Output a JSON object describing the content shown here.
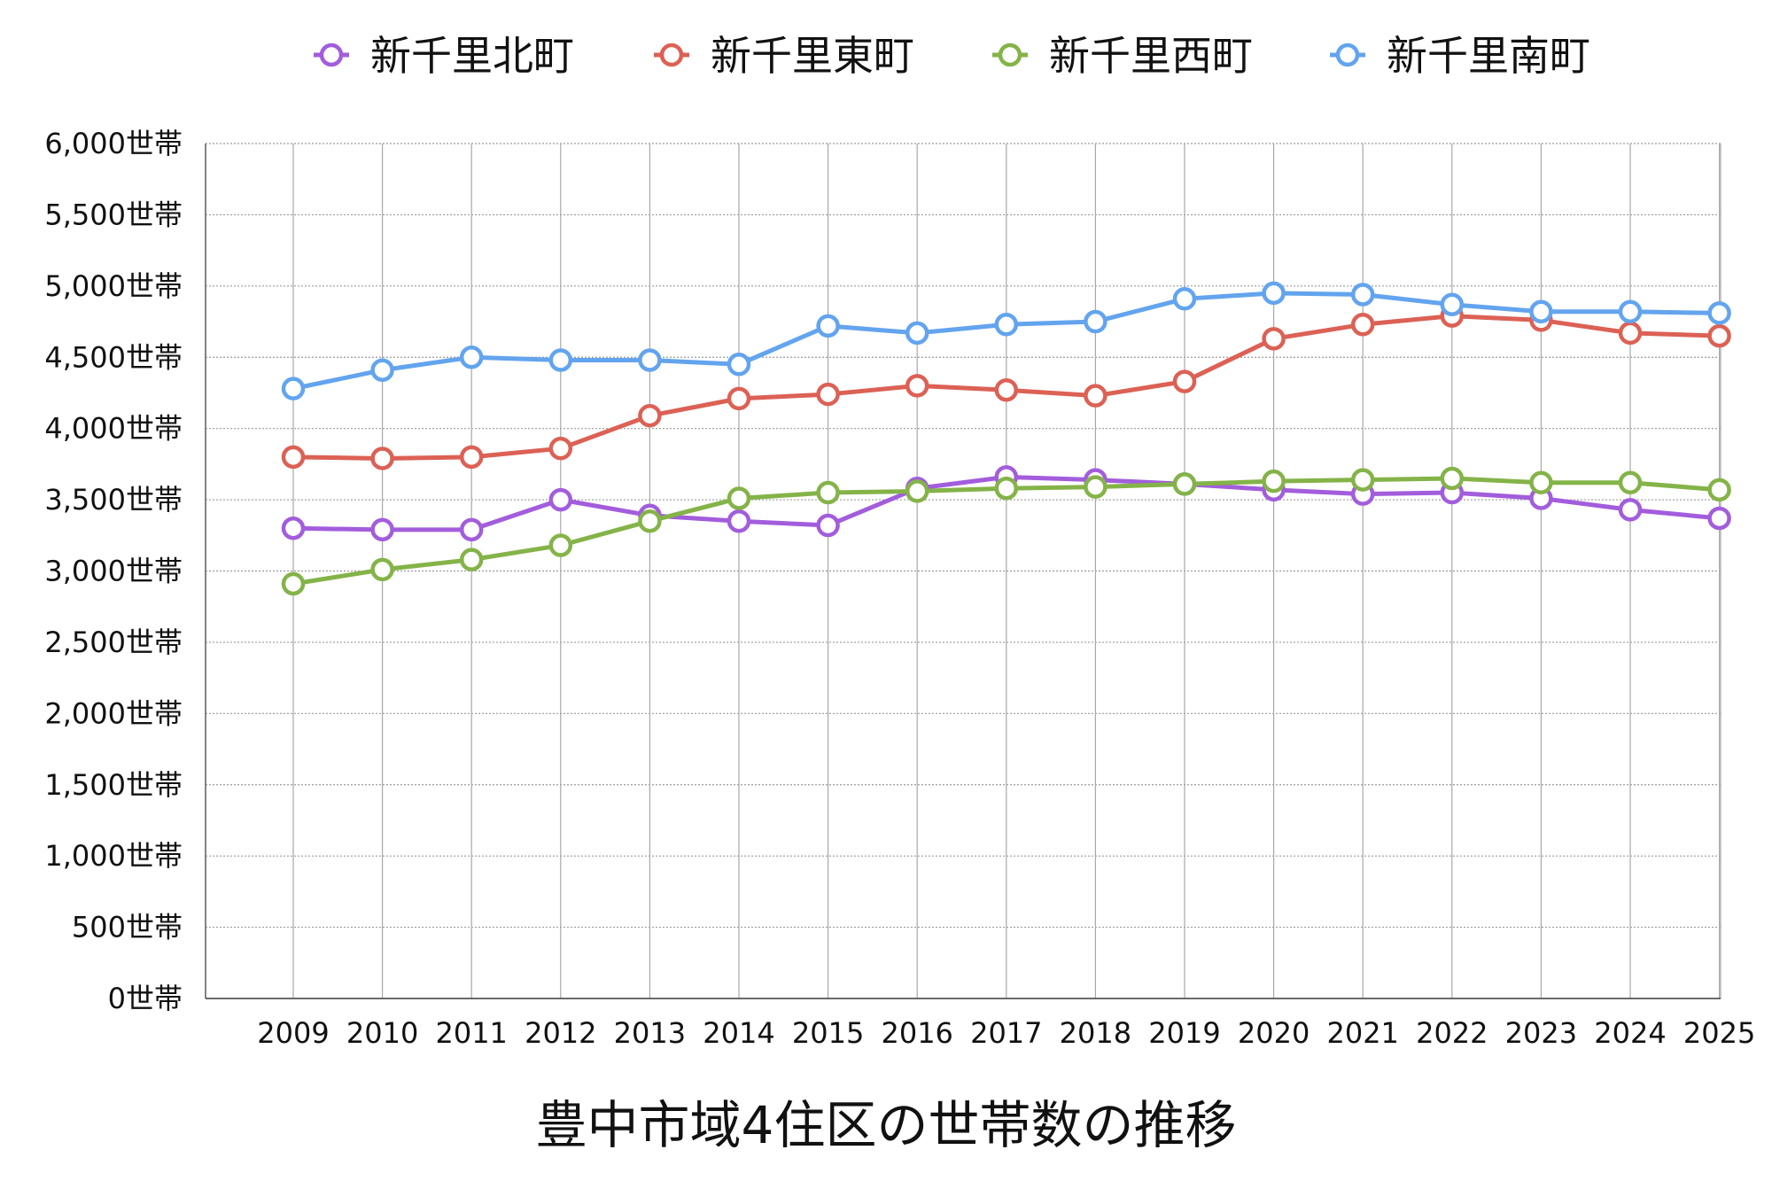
{
  "chart_data": {
    "type": "line",
    "title": "豊中市域4住区の世帯数の推移",
    "ylim": [
      0,
      6000
    ],
    "y_ticks": [
      {
        "value": 0,
        "label": "0世帯"
      },
      {
        "value": 500,
        "label": "500世帯"
      },
      {
        "value": 1000,
        "label": "1,000世帯"
      },
      {
        "value": 1500,
        "label": "1,500世帯"
      },
      {
        "value": 2000,
        "label": "2,000世帯"
      },
      {
        "value": 2500,
        "label": "2,500世帯"
      },
      {
        "value": 3000,
        "label": "3,000世帯"
      },
      {
        "value": 3500,
        "label": "3,500世帯"
      },
      {
        "value": 4000,
        "label": "4,000世帯"
      },
      {
        "value": 4500,
        "label": "4,500世帯"
      },
      {
        "value": 5000,
        "label": "5,000世帯"
      },
      {
        "value": 5500,
        "label": "5,500世帯"
      },
      {
        "value": 6000,
        "label": "6,000世帯"
      }
    ],
    "categories": [
      "2009",
      "2010",
      "2011",
      "2012",
      "2013",
      "2014",
      "2015",
      "2016",
      "2017",
      "2018",
      "2019",
      "2020",
      "2021",
      "2022",
      "2023",
      "2024",
      "2025"
    ],
    "grid": true,
    "legend_position": "top",
    "series": [
      {
        "name": "新千里北町",
        "color": "#a25ddc",
        "values": [
          3300,
          3290,
          3290,
          3500,
          3390,
          3350,
          3320,
          3580,
          3660,
          3640,
          3610,
          3570,
          3540,
          3550,
          3510,
          3430,
          3370
        ]
      },
      {
        "name": "新千里東町",
        "color": "#dc6155",
        "values": [
          3800,
          3790,
          3800,
          3860,
          4090,
          4210,
          4240,
          4300,
          4270,
          4230,
          4330,
          4630,
          4730,
          4790,
          4760,
          4670,
          4650
        ]
      },
      {
        "name": "新千里西町",
        "color": "#84b348",
        "values": [
          2910,
          3010,
          3080,
          3180,
          3350,
          3510,
          3550,
          3560,
          3580,
          3590,
          3610,
          3630,
          3640,
          3650,
          3620,
          3620,
          3570
        ]
      },
      {
        "name": "新千里南町",
        "color": "#63a4ee",
        "values": [
          4280,
          4410,
          4500,
          4480,
          4480,
          4450,
          4720,
          4670,
          4730,
          4750,
          4910,
          4950,
          4940,
          4870,
          4820,
          4820,
          4810
        ]
      }
    ]
  }
}
